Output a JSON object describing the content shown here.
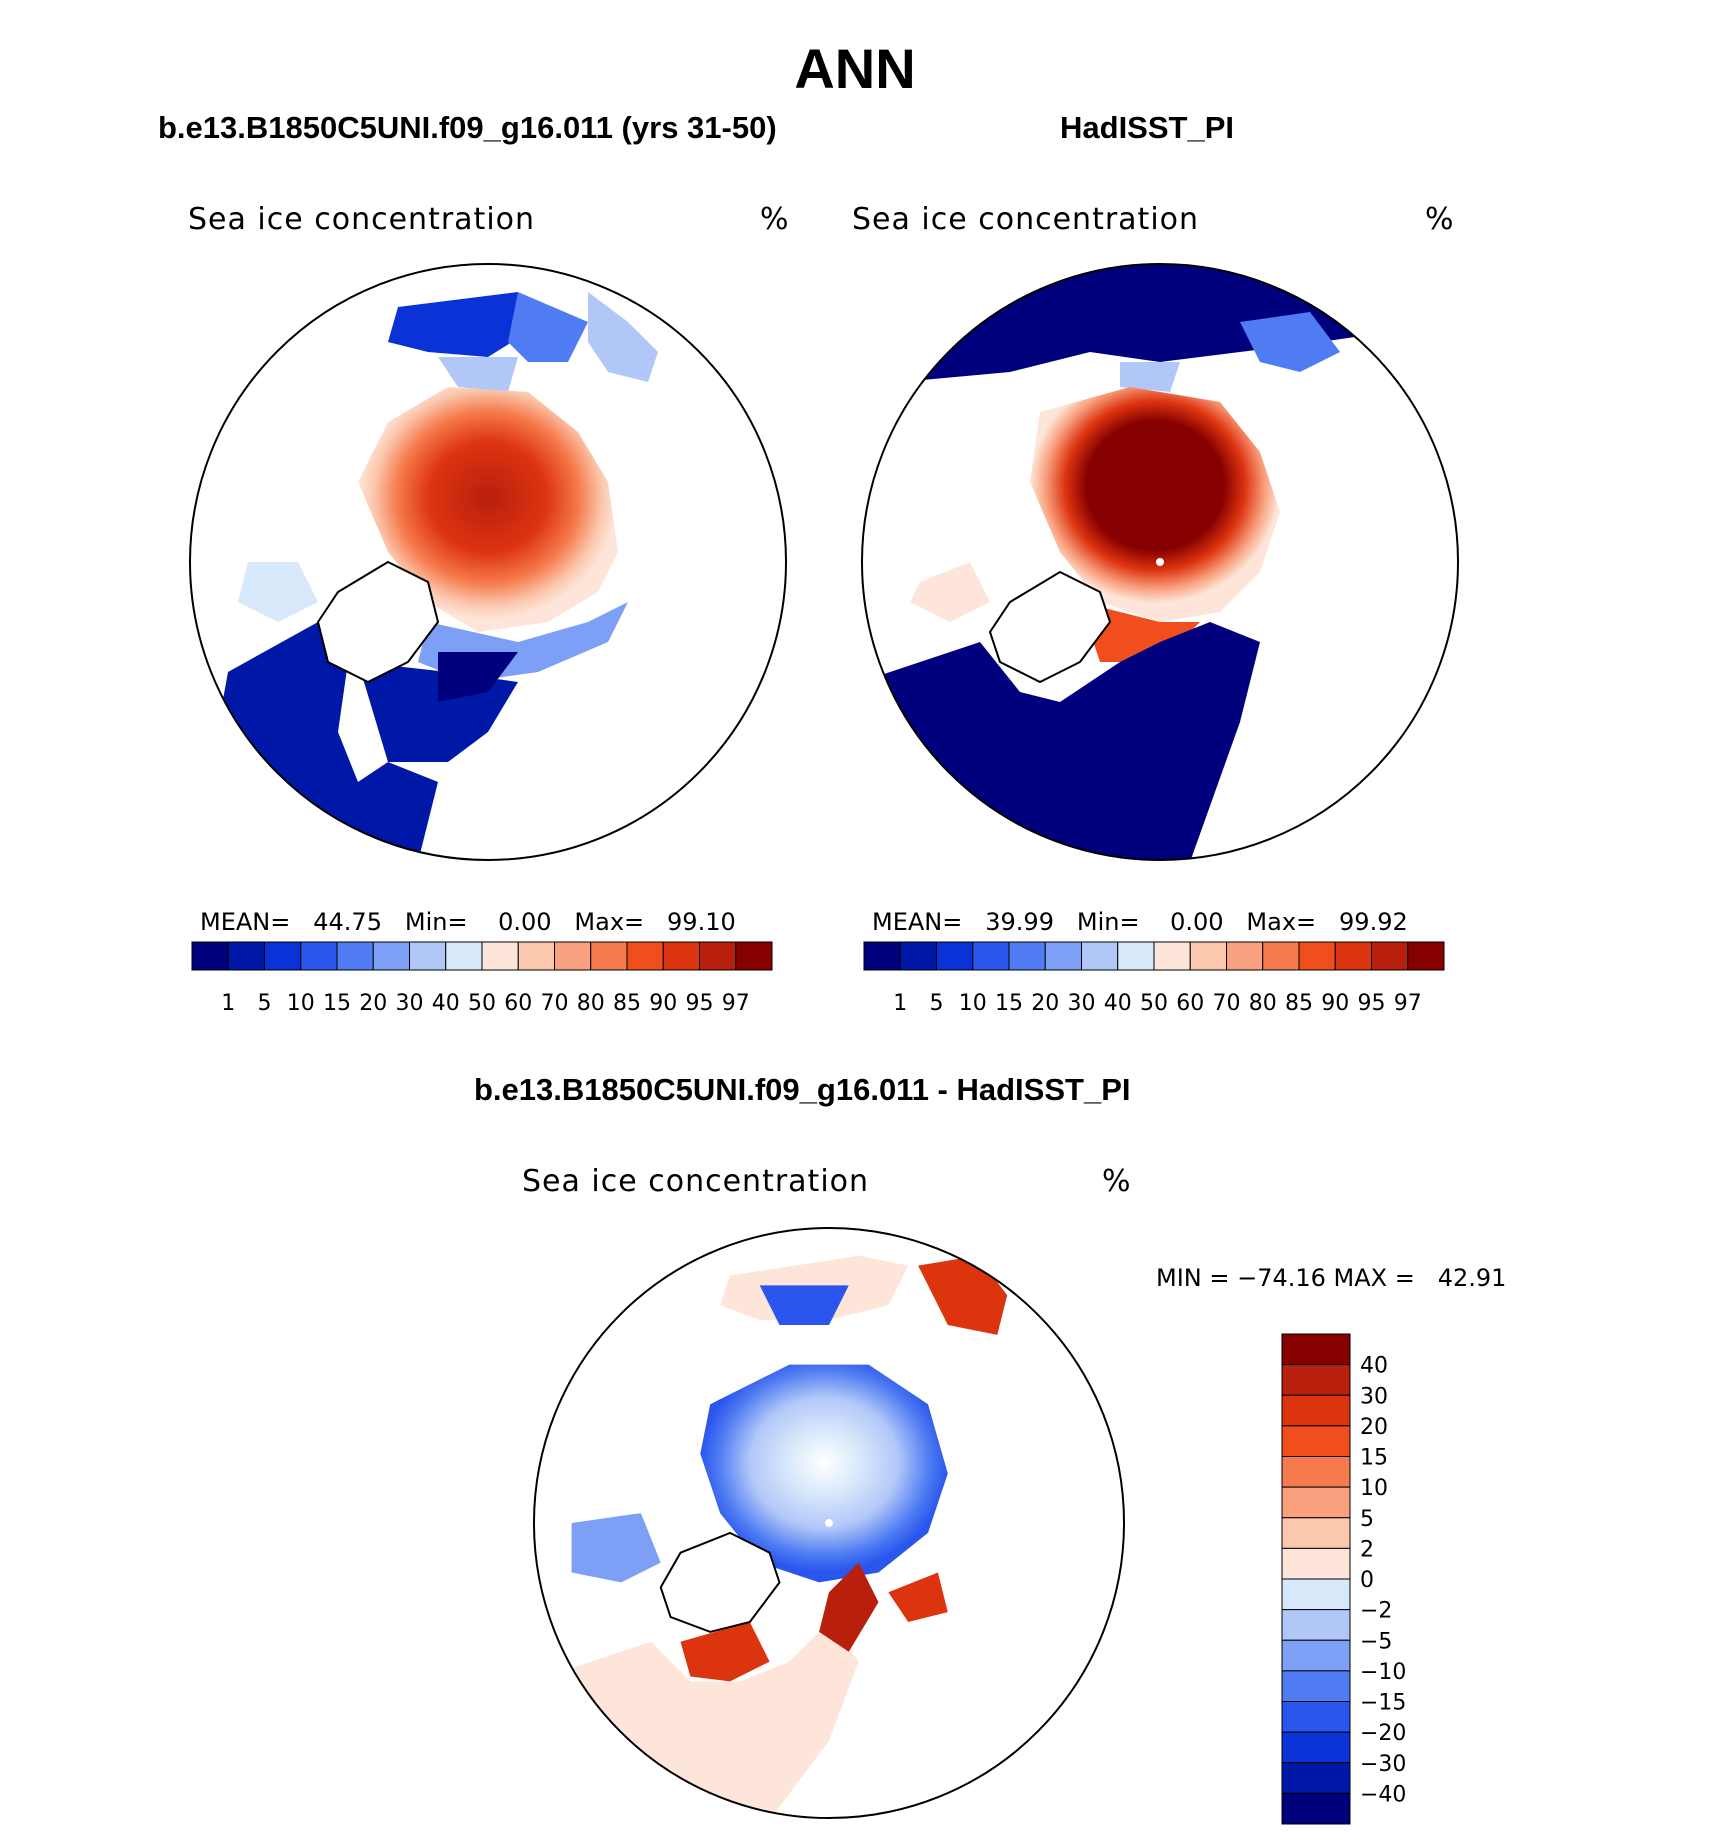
{
  "title": "ANN",
  "panels": [
    {
      "title": "b.e13.B1850C5UNI.f09_g16.011 (yrs 31-50)",
      "variable": "Sea ice concentration",
      "units": "%",
      "mean_label": "MEAN=",
      "mean": "44.75",
      "min_label": "Min=",
      "min": "0.00",
      "max_label": "Max=",
      "max": "99.10"
    },
    {
      "title": "HadISST_PI",
      "variable": "Sea ice concentration",
      "units": "%",
      "mean_label": "MEAN=",
      "mean": "39.99",
      "min_label": "Min=",
      "min": "0.00",
      "max_label": "Max=",
      "max": "99.92"
    }
  ],
  "diff_panel": {
    "title": "b.e13.B1850C5UNI.f09_g16.011 - HadISST_PI",
    "variable": "Sea ice concentration",
    "units": "%",
    "minmax_text": "MIN = −74.16 MAX =   42.91"
  },
  "abs_colorbar": {
    "ticks": [
      "1",
      "5",
      "10",
      "15",
      "20",
      "30",
      "40",
      "50",
      "60",
      "70",
      "80",
      "85",
      "90",
      "95",
      "97"
    ],
    "colors": [
      "#00007f",
      "#0018a8",
      "#0a32d6",
      "#2a56ee",
      "#4f7cf2",
      "#7d9ff5",
      "#b1c7f8",
      "#d8e8fb",
      "#fde6d9",
      "#fbc7ad",
      "#f9a17f",
      "#f67a4d",
      "#f04f1d",
      "#dd3410",
      "#b81f0d",
      "#870000"
    ]
  },
  "diff_colorbar": {
    "ticks": [
      "40",
      "30",
      "20",
      "15",
      "10",
      "5",
      "2",
      "0",
      "−2",
      "−5",
      "−10",
      "−15",
      "−20",
      "−30",
      "−40"
    ],
    "colors": [
      "#870000",
      "#b81f0d",
      "#dd3410",
      "#f04f1d",
      "#f67a4d",
      "#f9a17f",
      "#fbc7ad",
      "#fde6d9",
      "#d8e8fb",
      "#b1c7f8",
      "#7d9ff5",
      "#4f7cf2",
      "#2a56ee",
      "#0a32d6",
      "#0018a8",
      "#00007f"
    ]
  }
}
